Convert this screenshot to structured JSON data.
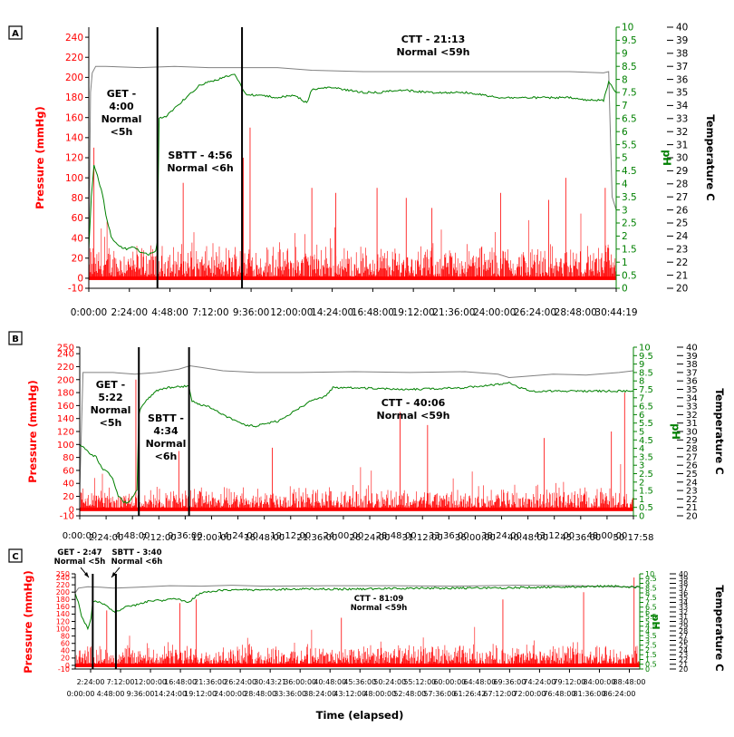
{
  "figure": {
    "xlabel": "Time (elapsed)",
    "colors": {
      "pressure": "#ff0000",
      "ph": "#008000",
      "temp": "#808080",
      "text": "#000000"
    }
  },
  "chart_data": [
    {
      "type": "line",
      "panel_label": "A",
      "ylabel_left": "Pressure (mmHg)",
      "ylabel_ph": "pH",
      "ylabel_temp": "Temperature C",
      "pressure_ticks": [
        "240",
        "220",
        "200",
        "180",
        "160",
        "140",
        "120",
        "100",
        "80",
        "60",
        "40",
        "20",
        "0",
        "-10"
      ],
      "pressure_range": [
        -10,
        250
      ],
      "ph_ticks": [
        "10",
        "9.5",
        "9",
        "8.5",
        "8",
        "7.5",
        "7",
        "6.5",
        "6",
        "5.5",
        "5",
        "4.5",
        "4",
        "3.5",
        "3",
        "2.5",
        "2",
        "1.5",
        "1",
        "0.5",
        "0"
      ],
      "ph_range": [
        0,
        10
      ],
      "temp_ticks": [
        "40",
        "39",
        "38",
        "37",
        "36",
        "35",
        "34",
        "33",
        "32",
        "31",
        "30",
        "29",
        "28",
        "27",
        "26",
        "25",
        "24",
        "23",
        "22",
        "21",
        "20"
      ],
      "temp_range": [
        20,
        40
      ],
      "x_ticks": [
        "0:00:00",
        "2:24:00",
        "4:48:00",
        "7:12:00",
        "9:36:00",
        "12:00:00",
        "14:24:00",
        "16:48:00",
        "19:12:00",
        "21:36:00",
        "24:00:00",
        "26:24:00",
        "28:48:00",
        "30:44:19"
      ],
      "x_range_hours": [
        0,
        30.74
      ],
      "markers_hours": [
        4.0,
        8.93
      ],
      "annotations": [
        {
          "lines": [
            "GET -",
            "4:00",
            "Normal",
            "<5h"
          ]
        },
        {
          "lines": [
            "SBTT - 4:56",
            "Normal <6h"
          ]
        },
        {
          "lines": [
            "CTT - 21:13",
            "Normal <59h"
          ]
        }
      ],
      "series": [
        {
          "name": "pH",
          "x": [
            0,
            0.15,
            0.3,
            0.5,
            0.8,
            1.0,
            1.3,
            1.5,
            1.8,
            2.2,
            2.6,
            3.0,
            3.5,
            3.9,
            4.0,
            4.1,
            4.5,
            5.5,
            6.5,
            7.5,
            8.5,
            8.93,
            9.2,
            10,
            11,
            12,
            12.7,
            13,
            14,
            15,
            16,
            17,
            18,
            20,
            22,
            24,
            26,
            28,
            29,
            30,
            30.3,
            30.74
          ],
          "y": [
            1.5,
            3.5,
            4.7,
            4.3,
            3.6,
            2.8,
            2.0,
            1.8,
            1.6,
            1.5,
            1.6,
            1.4,
            1.3,
            1.4,
            1.8,
            6.5,
            6.6,
            7.2,
            7.8,
            8.0,
            8.2,
            7.7,
            7.4,
            7.4,
            7.3,
            7.4,
            7.1,
            7.6,
            7.7,
            7.6,
            7.5,
            7.5,
            7.6,
            7.5,
            7.5,
            7.3,
            7.3,
            7.3,
            7.2,
            7.2,
            7.9,
            7.5
          ]
        },
        {
          "name": "Temperature C",
          "x": [
            0,
            0.1,
            0.2,
            0.4,
            1,
            3,
            5,
            7,
            9,
            11,
            13,
            16,
            19,
            22,
            25,
            28,
            30,
            30.3,
            30.5,
            30.74
          ],
          "y": [
            21,
            35,
            36.5,
            37,
            37,
            36.9,
            37,
            36.9,
            36.9,
            36.9,
            36.7,
            36.6,
            36.6,
            36.6,
            36.6,
            36.6,
            36.5,
            36.6,
            27,
            26
          ]
        },
        {
          "name": "Pressure (mmHg)",
          "x": [
            0.3,
            5.5,
            9.0,
            9.4,
            13.0,
            14.4,
            16.8,
            18.5,
            20.0,
            24.0,
            26.8,
            27.8,
            30.1
          ],
          "y": [
            130,
            95,
            120,
            150,
            90,
            85,
            90,
            80,
            70,
            85,
            78,
            100,
            90
          ]
        }
      ]
    },
    {
      "type": "line",
      "panel_label": "B",
      "ylabel_left": "Pressure (mmHg)",
      "ylabel_ph": "pH",
      "ylabel_temp": "Temperature C",
      "pressure_ticks": [
        "250",
        "240",
        "220",
        "200",
        "180",
        "160",
        "140",
        "120",
        "100",
        "80",
        "60",
        "40",
        "20",
        "0",
        "-10"
      ],
      "pressure_range": [
        -10,
        250
      ],
      "ph_ticks": [
        "10",
        "9.5",
        "9",
        "8.5",
        "8",
        "7.5",
        "7",
        "6.5",
        "6",
        "5.5",
        "5",
        "4.5",
        "4",
        "3.5",
        "3",
        "2.5",
        "2",
        "1.5",
        "1",
        "0.5",
        "0"
      ],
      "ph_range": [
        0,
        10
      ],
      "temp_ticks": [
        "40",
        "39",
        "38",
        "37",
        "36",
        "35",
        "34",
        "33",
        "32",
        "31",
        "30",
        "29",
        "28",
        "27",
        "26",
        "25",
        "24",
        "23",
        "22",
        "21",
        "20"
      ],
      "temp_range": [
        20,
        40
      ],
      "x_ticks_top": [
        "0:00:00",
        "4:48:00",
        "9:36:00",
        "14:24:00",
        "19:12:00",
        "24:00:00",
        "28:48:00",
        "33:36:00",
        "38:24:00",
        "43:12:00",
        "48:00:00"
      ],
      "x_ticks_bottom": [
        "2:24:00",
        "7:12:00",
        "12:00:00",
        "16:48:00",
        "21:36:00",
        "26:24:00",
        "31:12:00",
        "36:00:00",
        "40:48:00",
        "45:36:00",
        "50:17:58"
      ],
      "x_range_hours": [
        0,
        50.3
      ],
      "markers_hours": [
        5.37,
        9.93
      ],
      "annotations": [
        {
          "lines": [
            "GET -",
            "5:22",
            "Normal",
            "<5h"
          ]
        },
        {
          "lines": [
            "SBTT -",
            "4:34",
            "Normal",
            "<6h"
          ]
        },
        {
          "lines": [
            "CTT - 40:06",
            "Normal <59h"
          ]
        }
      ],
      "series": [
        {
          "name": "pH",
          "x": [
            0,
            0.5,
            1,
            1.5,
            2,
            2.5,
            3,
            3.5,
            4,
            4.5,
            5.2,
            5.37,
            5.6,
            6.3,
            7,
            8,
            9.9,
            10.2,
            11,
            12,
            13,
            14,
            15,
            16,
            17,
            18,
            19,
            20,
            21,
            22,
            22.5,
            23,
            25,
            30,
            35,
            38,
            39,
            40,
            41,
            45,
            50.3
          ],
          "y": [
            4.2,
            4.0,
            3.6,
            3.5,
            2.8,
            2.6,
            2.2,
            1.2,
            0.8,
            0.8,
            1.5,
            6.0,
            6.5,
            7.0,
            7.4,
            7.6,
            7.7,
            6.8,
            6.6,
            6.4,
            6.0,
            5.7,
            5.4,
            5.3,
            5.5,
            5.6,
            6.0,
            6.4,
            6.8,
            7.0,
            7.2,
            7.6,
            7.6,
            7.5,
            7.6,
            7.8,
            7.9,
            7.6,
            7.4,
            7.4,
            7.4
          ]
        },
        {
          "name": "Temperature C",
          "x": [
            0,
            0.3,
            1,
            3,
            5,
            7,
            9,
            10,
            11,
            13,
            16,
            20,
            25,
            30,
            35,
            38,
            39,
            40,
            43,
            46,
            49,
            50.3
          ],
          "y": [
            23,
            37,
            37,
            37,
            36.8,
            37,
            37.4,
            37.8,
            37.6,
            37.2,
            37.0,
            37.0,
            37.1,
            37.0,
            37.1,
            36.8,
            36.4,
            36.5,
            36.8,
            36.7,
            37.0,
            37.2
          ]
        },
        {
          "name": "Pressure (mmHg)",
          "x": [
            5.1,
            5.4,
            9.0,
            17.5,
            29.1,
            31.6,
            42.2,
            48.3,
            49.5
          ],
          "y": [
            200,
            220,
            90,
            95,
            150,
            130,
            110,
            120,
            180
          ]
        }
      ]
    },
    {
      "type": "line",
      "panel_label": "C",
      "ylabel_left": "Pressure (mmHg)",
      "ylabel_ph": "pH",
      "ylabel_temp": "Temperature C",
      "pressure_ticks": [
        "250",
        "240",
        "220",
        "200",
        "180",
        "160",
        "140",
        "120",
        "100",
        "80",
        "60",
        "40",
        "20",
        "0",
        "-10"
      ],
      "pressure_range": [
        -10,
        250
      ],
      "ph_ticks": [
        "10",
        "9.5",
        "9",
        "8.5",
        "8",
        "7.5",
        "7",
        "6.5",
        "6",
        "5.5",
        "5",
        "4.5",
        "4",
        "3.5",
        "3",
        "2.5",
        "2",
        "1.5",
        "1",
        "0.5",
        "0"
      ],
      "ph_range": [
        0,
        10
      ],
      "temp_ticks": [
        "40",
        "39",
        "38",
        "37",
        "36",
        "35",
        "34",
        "33",
        "32",
        "31",
        "30",
        "29",
        "28",
        "27",
        "26",
        "25",
        "24",
        "23",
        "22",
        "21",
        "20"
      ],
      "temp_range": [
        20,
        40
      ],
      "x_ticks_top": [
        "2:24:00",
        "7:12:00",
        "12:00:00",
        "16:48:00",
        "21:36:00",
        "26:24:00",
        "30:43:21",
        "36:00:00",
        "40:48:00",
        "45:36:00",
        "50:24:00",
        "55:12:00",
        "60:00:00",
        "64:48:00",
        "69:36:00",
        "74:24:00",
        "79:12:00",
        "84:00:00",
        "88:48:00"
      ],
      "x_ticks_bottom": [
        "0:00:00",
        "4:48:00",
        "9:36:00",
        "14:24:00",
        "19:12:00",
        "24:00:00",
        "28:48:00",
        "33:36:00",
        "38:24:00",
        "43:12:00",
        "48:00:00",
        "52:48:00",
        "57:36:00",
        "61:26:42",
        "67:12:00",
        "72:00:00",
        "76:48:00",
        "81:36:00",
        "86:24:00"
      ],
      "x_range_hours": [
        0,
        89.5
      ],
      "markers_hours": [
        2.78,
        6.45
      ],
      "annotations": [
        {
          "lines": [
            "GET - 2:47",
            "Normal <5h"
          ]
        },
        {
          "lines": [
            "SBTT - 3:40",
            "Normal <6h"
          ]
        },
        {
          "lines": [
            "CTT - 81:09",
            "Normal <59h"
          ]
        }
      ],
      "series": [
        {
          "name": "pH",
          "x": [
            0,
            0.5,
            1,
            1.5,
            2,
            2.5,
            2.78,
            3.2,
            4,
            5,
            6.4,
            8,
            10,
            12,
            14,
            16,
            18,
            19,
            20,
            22,
            24,
            28,
            35,
            45,
            55,
            65,
            75,
            85,
            89.5
          ],
          "y": [
            8,
            7.0,
            5.5,
            4.8,
            4.3,
            5.2,
            7.0,
            7.2,
            7.0,
            6.6,
            6.0,
            6.5,
            6.8,
            7.2,
            7.2,
            7.4,
            7.0,
            7.6,
            8.0,
            8.2,
            8.3,
            8.3,
            8.4,
            8.4,
            8.5,
            8.5,
            8.6,
            8.7,
            8.6
          ]
        },
        {
          "name": "Temperature C",
          "x": [
            0,
            0.5,
            2,
            4,
            6,
            10,
            15,
            20,
            25,
            30,
            40,
            50,
            60,
            70,
            80,
            85,
            89.5
          ],
          "y": [
            36,
            37,
            37.3,
            37.2,
            37.0,
            37.2,
            37.5,
            37.4,
            37.6,
            37.4,
            37.5,
            37.5,
            37.4,
            37.6,
            37.5,
            37.3,
            37.3
          ]
        },
        {
          "name": "Pressure (mmHg)",
          "x": [
            5.0,
            6.5,
            16.6,
            19.2,
            42.2,
            67.8,
            80.6,
            88.6
          ],
          "y": [
            150,
            140,
            170,
            180,
            130,
            180,
            200,
            240
          ]
        }
      ]
    }
  ]
}
